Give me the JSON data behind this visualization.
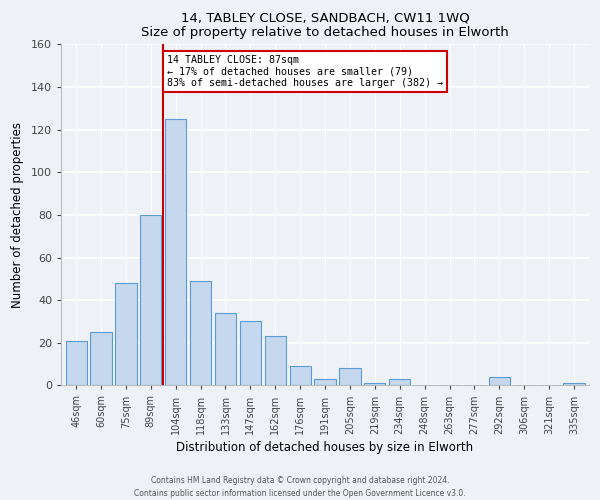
{
  "title": "14, TABLEY CLOSE, SANDBACH, CW11 1WQ",
  "subtitle": "Size of property relative to detached houses in Elworth",
  "xlabel": "Distribution of detached houses by size in Elworth",
  "ylabel": "Number of detached properties",
  "bar_labels": [
    "46sqm",
    "60sqm",
    "75sqm",
    "89sqm",
    "104sqm",
    "118sqm",
    "133sqm",
    "147sqm",
    "162sqm",
    "176sqm",
    "191sqm",
    "205sqm",
    "219sqm",
    "234sqm",
    "248sqm",
    "263sqm",
    "277sqm",
    "292sqm",
    "306sqm",
    "321sqm",
    "335sqm"
  ],
  "bar_values": [
    21,
    25,
    48,
    80,
    125,
    49,
    34,
    30,
    23,
    9,
    3,
    8,
    1,
    3,
    0,
    0,
    0,
    4,
    0,
    0,
    1
  ],
  "bar_color": "#c5d8ed",
  "bar_edge_color": "#5b9bd5",
  "ylim": [
    0,
    160
  ],
  "yticks": [
    0,
    20,
    40,
    60,
    80,
    100,
    120,
    140,
    160
  ],
  "property_line_x": 3.5,
  "property_line_label": "14 TABLEY CLOSE: 87sqm",
  "annotation_line1": "← 17% of detached houses are smaller (79)",
  "annotation_line2": "83% of semi-detached houses are larger (382) →",
  "annotation_box_color": "#ffffff",
  "annotation_box_edge": "#cc0000",
  "red_line_color": "#cc0000",
  "footer1": "Contains HM Land Registry data © Crown copyright and database right 2024.",
  "footer2": "Contains public sector information licensed under the Open Government Licence v3.0.",
  "background_color": "#eef2f7"
}
